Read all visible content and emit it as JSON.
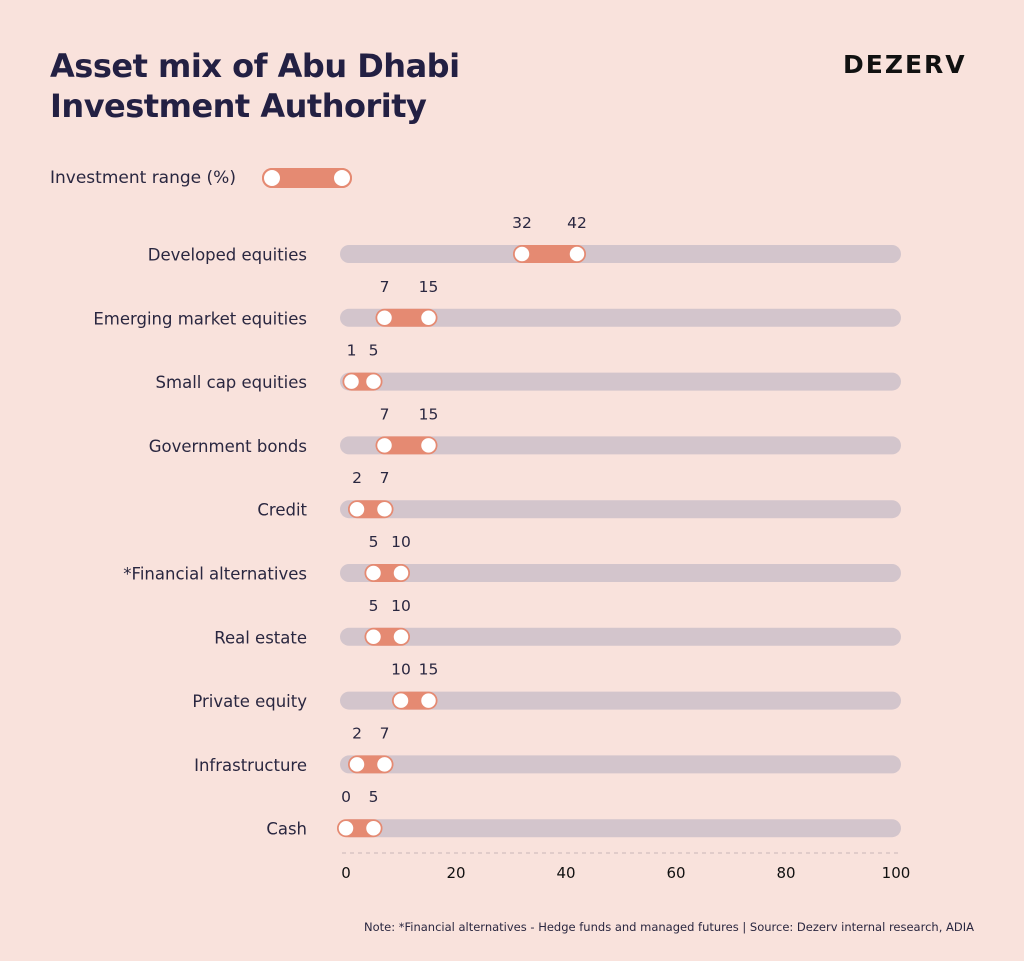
{
  "header": {
    "title_line1": "Asset mix of Abu Dhabi",
    "title_line2": "Investment Authority",
    "brand": "DEZERV"
  },
  "legend": {
    "label": "Investment range (%)"
  },
  "note": "Note: *Financial alternatives - Hedge funds and managed futures | Source: Dezerv internal research, ADIA",
  "colors": {
    "background": "#F9E2DC",
    "track": "#D3C5CC",
    "range": "#E58A72",
    "knob": "#FFFFFF",
    "text": "#2A2740"
  },
  "chart_data": {
    "type": "range-bar",
    "title": "Asset mix of Abu Dhabi Investment Authority",
    "legend": "Investment range (%)",
    "xlim": [
      0,
      100
    ],
    "xticks": [
      0,
      20,
      40,
      60,
      80,
      100
    ],
    "categories": [
      "Developed equities",
      "Emerging market equities",
      "Small cap equities",
      "Government bonds",
      "Credit",
      "*Financial alternatives",
      "Real estate",
      "Private equity",
      "Infrastructure",
      "Cash"
    ],
    "ranges": [
      [
        32,
        42
      ],
      [
        7,
        15
      ],
      [
        1,
        5
      ],
      [
        7,
        15
      ],
      [
        2,
        7
      ],
      [
        5,
        10
      ],
      [
        5,
        10
      ],
      [
        10,
        15
      ],
      [
        2,
        7
      ],
      [
        0,
        5
      ]
    ]
  }
}
